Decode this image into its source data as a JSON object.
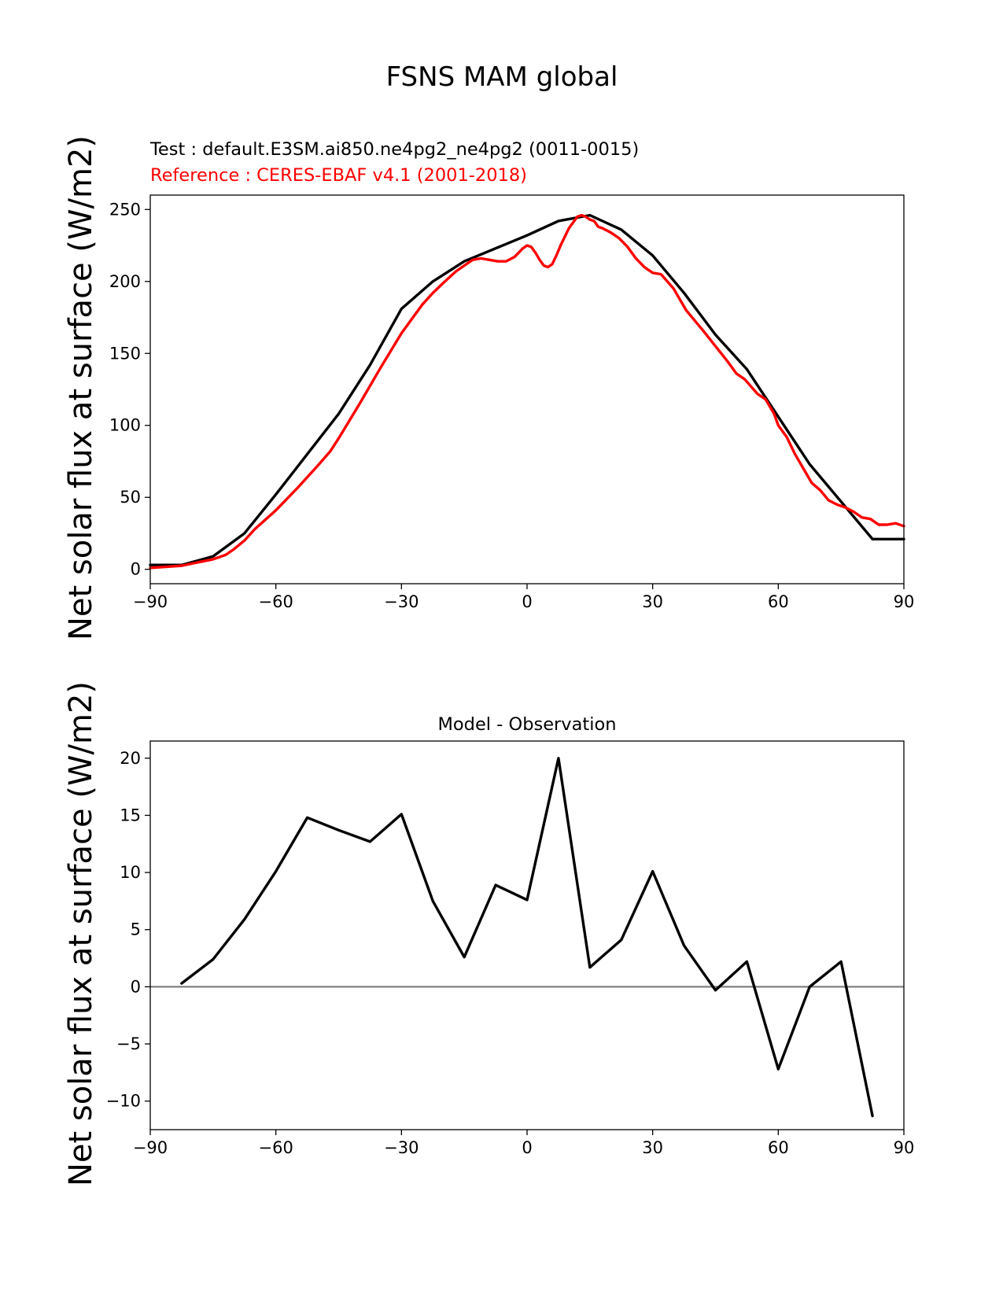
{
  "figure_title": "FSNS MAM global",
  "chart_data": [
    {
      "type": "line",
      "test_label": "Test : default.E3SM.ai850.ne4pg2_ne4pg2 (0011-0015)",
      "reference_label": "Reference : CERES-EBAF v4.1 (2001-2018)",
      "ylabel": "Net solar flux at surface (W/m2)",
      "xlim": [
        -90,
        90
      ],
      "ylim": [
        -10,
        260
      ],
      "xticks": [
        -90,
        -60,
        -30,
        0,
        30,
        60,
        90
      ],
      "xtick_labels": [
        "−90",
        "−60",
        "−30",
        "0",
        "30",
        "60",
        "90"
      ],
      "yticks": [
        0,
        50,
        100,
        150,
        200,
        250
      ],
      "ytick_labels": [
        "0",
        "50",
        "100",
        "150",
        "200",
        "250"
      ],
      "series": [
        {
          "name": "Test",
          "color": "#000000",
          "x": [
            -90,
            -82.5,
            -75,
            -67.5,
            -60,
            -52.5,
            -45,
            -37.5,
            -30,
            -22.5,
            -15,
            -7.5,
            0,
            7.5,
            15,
            22.5,
            30,
            37.5,
            45,
            52.5,
            60,
            67.5,
            75,
            82.5,
            90
          ],
          "y": [
            3,
            3,
            9,
            25,
            52,
            80,
            108,
            142,
            181,
            200,
            214,
            223,
            232,
            242,
            246,
            236,
            218,
            192,
            163,
            139,
            106,
            73,
            47,
            21,
            21
          ]
        },
        {
          "name": "Reference",
          "color": "#ff0000",
          "x": [
            -90,
            -85,
            -82.5,
            -80,
            -75,
            -72,
            -70,
            -67.5,
            -65,
            -60,
            -55,
            -52.5,
            -50,
            -47,
            -45,
            -40,
            -35,
            -30,
            -25,
            -22.5,
            -20,
            -17,
            -15,
            -13,
            -11,
            -9,
            -7,
            -5,
            -3,
            -1,
            0,
            1,
            2,
            3,
            4,
            5,
            6,
            7,
            8,
            10,
            12,
            13,
            14,
            15,
            16,
            17,
            18,
            20,
            22,
            24,
            26,
            27,
            28,
            30,
            32,
            35,
            38,
            40,
            42,
            45,
            48,
            50,
            52,
            55,
            57,
            59,
            60,
            62,
            64,
            66,
            68,
            70,
            72,
            74,
            76,
            78,
            80,
            82,
            84,
            86,
            88,
            90
          ],
          "y": [
            1,
            2,
            2.5,
            4,
            7,
            10,
            14,
            20,
            28,
            41,
            56,
            64,
            72,
            82,
            91,
            115,
            140,
            164,
            184,
            192,
            199,
            207,
            211,
            215,
            216,
            215,
            214,
            214,
            217,
            223,
            225,
            224,
            220,
            215,
            211,
            210,
            212,
            218,
            225,
            237,
            245,
            246,
            245,
            243,
            242,
            238,
            237,
            234,
            230,
            224,
            216,
            213,
            210,
            206,
            205,
            195,
            180,
            173,
            166,
            155,
            144,
            136,
            132,
            122,
            118,
            108,
            100,
            92,
            80,
            70,
            60,
            55,
            48,
            45,
            43,
            40,
            36,
            35,
            31,
            31,
            32,
            30
          ]
        }
      ]
    },
    {
      "type": "line",
      "title": "Model - Observation",
      "ylabel": "Net solar flux at surface (W/m2)",
      "xlim": [
        -90,
        90
      ],
      "ylim": [
        -12.5,
        21.5
      ],
      "xticks": [
        -90,
        -60,
        -30,
        0,
        30,
        60,
        90
      ],
      "xtick_labels": [
        "−90",
        "−60",
        "−30",
        "0",
        "30",
        "60",
        "90"
      ],
      "yticks": [
        -10,
        -5,
        0,
        5,
        10,
        15,
        20
      ],
      "ytick_labels": [
        "−10",
        "−5",
        "0",
        "5",
        "10",
        "15",
        "20"
      ],
      "zero_line": true,
      "series": [
        {
          "name": "Difference",
          "color": "#000000",
          "x": [
            -82.5,
            -75,
            -67.5,
            -60,
            -52.5,
            -45,
            -37.5,
            -30,
            -22.5,
            -15,
            -7.5,
            0,
            7.5,
            15,
            22.5,
            30,
            37.5,
            45,
            52.5,
            60,
            67.5,
            75,
            82.5
          ],
          "y": [
            0.3,
            2.4,
            5.9,
            10.1,
            14.8,
            13.7,
            12.7,
            15.1,
            7.5,
            2.6,
            8.9,
            7.6,
            20.0,
            1.7,
            4.1,
            10.1,
            3.6,
            -0.3,
            2.2,
            -7.2,
            0.0,
            2.2,
            -11.3
          ]
        }
      ]
    }
  ]
}
